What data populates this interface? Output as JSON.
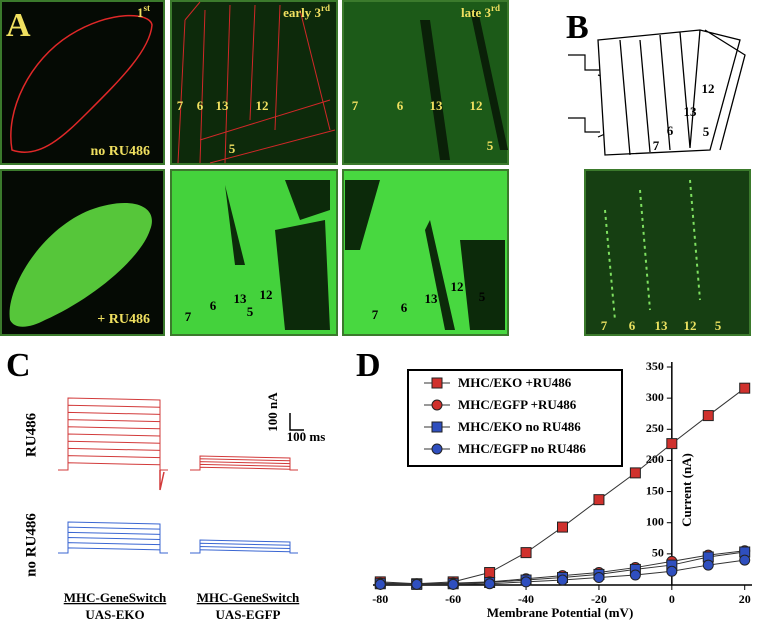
{
  "panel_labels": [
    "A",
    "B",
    "C",
    "D"
  ],
  "panel_a": {
    "first": {
      "base": "1",
      "sup": "st"
    },
    "early": {
      "base": "early 3",
      "sup": "rd"
    },
    "late": {
      "base": "late 3",
      "sup": "rd"
    },
    "no_ru": "no RU486",
    "plus_ru": "+ RU486",
    "early_muscles": [
      "7",
      "6",
      "13",
      "12",
      "5"
    ],
    "late_muscles": [
      "7",
      "6",
      "13",
      "12",
      "5"
    ],
    "plus_early_muscles": [
      "7",
      "6",
      "13",
      "12",
      "5"
    ],
    "plus_late_muscles": [
      "7",
      "6",
      "13",
      "12",
      "5"
    ]
  },
  "panel_b": {
    "diagram_muscles": [
      "12",
      "13",
      "6",
      "7",
      "5"
    ],
    "photo_muscles": [
      "7",
      "6",
      "13",
      "12",
      "5"
    ]
  },
  "panel_c": {
    "row_ru": "RU486",
    "row_no_ru": "no RU486",
    "scale_current": "100 nA",
    "scale_time": "100 ms",
    "col_eko": {
      "line1": "MHC-GeneSwitch",
      "line2": "UAS-EKO"
    },
    "col_egfp": {
      "line1": "MHC-GeneSwitch",
      "line2": "UAS-EGFP"
    }
  },
  "chart_data": {
    "type": "line",
    "x_label": "Membrane Potential (mV)",
    "y_label": "Current (nA)",
    "x": [
      -80,
      -70,
      -60,
      -50,
      -40,
      -30,
      -20,
      -10,
      0,
      10,
      20
    ],
    "xlim": [
      -82,
      22
    ],
    "xticks": [
      -80,
      -60,
      -40,
      -20,
      0,
      20
    ],
    "ylim": [
      0,
      350
    ],
    "yticks": [
      50,
      100,
      150,
      200,
      250,
      300,
      350
    ],
    "series": [
      {
        "name": "MHC/EKO +RU486",
        "color": "#d0312d",
        "marker": "square",
        "values": [
          5,
          2,
          5,
          20,
          52,
          93,
          137,
          180,
          227,
          272,
          316
        ]
      },
      {
        "name": "MHC/EGFP +RU486",
        "color": "#d0312d",
        "marker": "circle",
        "values": [
          3,
          2,
          3,
          5,
          10,
          15,
          20,
          28,
          38,
          48,
          55
        ]
      },
      {
        "name": "MHC/EKO no RU486",
        "color": "#2f4fbf",
        "marker": "square",
        "values": [
          2,
          1,
          2,
          4,
          8,
          12,
          17,
          25,
          32,
          45,
          53
        ]
      },
      {
        "name": "MHC/EGFP no RU486",
        "color": "#2f4fbf",
        "marker": "circle",
        "values": [
          1,
          1,
          1,
          2,
          5,
          8,
          12,
          16,
          22,
          32,
          40
        ]
      }
    ]
  }
}
